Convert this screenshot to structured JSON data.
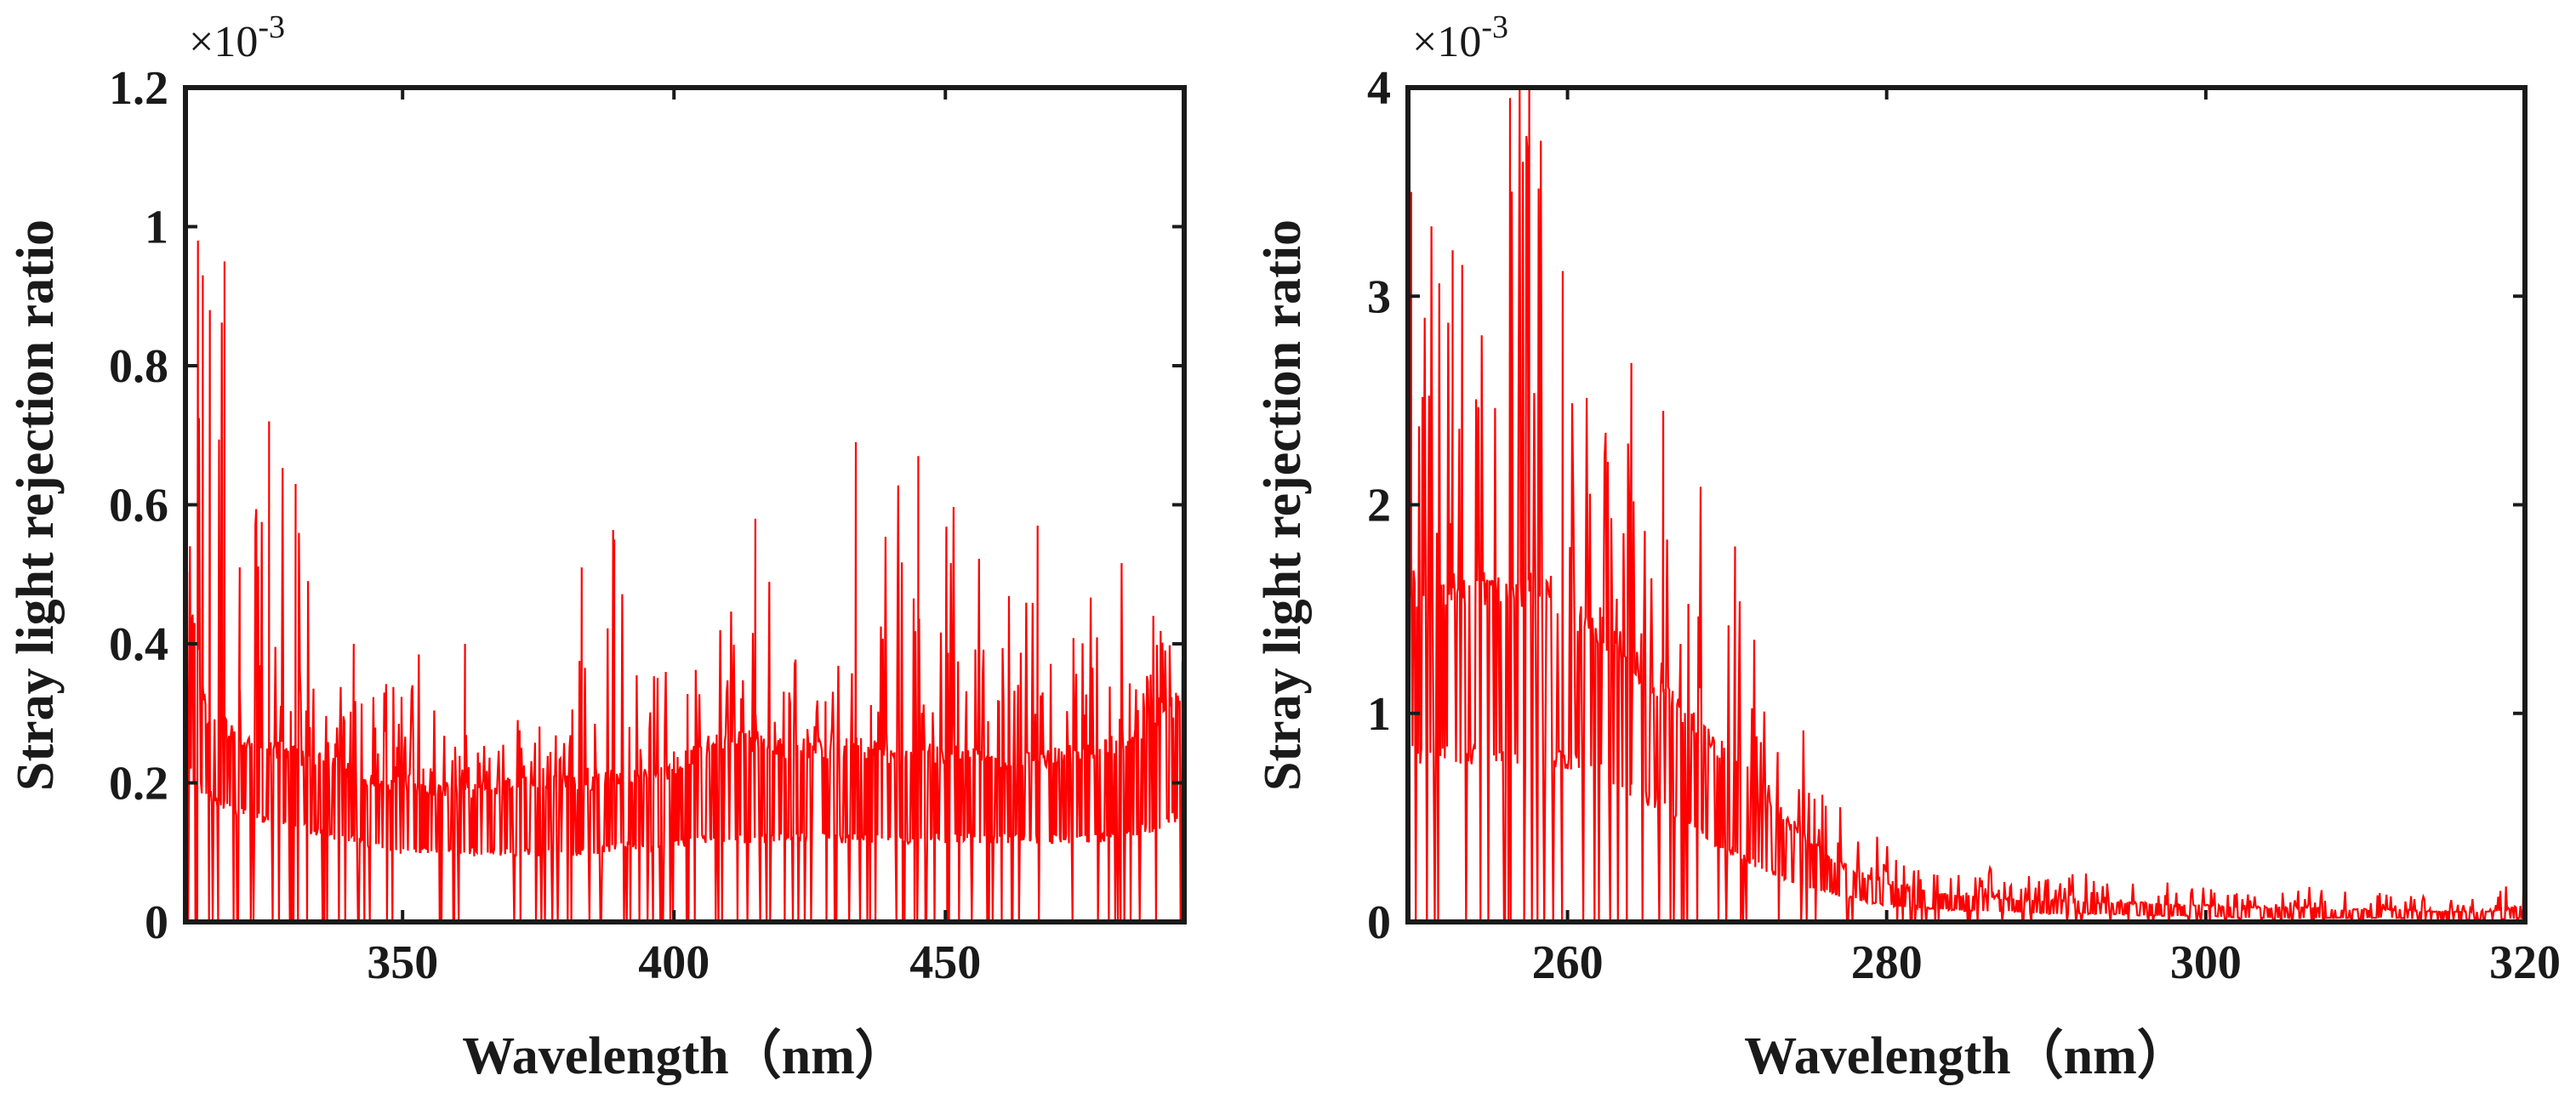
{
  "chart_data": [
    {
      "type": "line",
      "title": "",
      "xlabel": "Wavelength（nm）",
      "ylabel": "Stray light rejection ratio",
      "y_multiplier": "×10-3",
      "y_multiplier_base": "×10",
      "y_multiplier_exp": "-3",
      "xlim": [
        310,
        494
      ],
      "ylim": [
        0,
        1.2
      ],
      "xticks": [
        350,
        400,
        450
      ],
      "yticks": [
        0,
        0.2,
        0.4,
        0.6,
        0.8,
        1,
        1.2
      ],
      "xtick_labels": [
        "350",
        "400",
        "450"
      ],
      "ytick_labels": [
        "0",
        "0.2",
        "0.4",
        "0.6",
        "0.8",
        "1",
        "1.2"
      ],
      "grid": false,
      "series": [
        {
          "color": "#ff0000",
          "x": [
            310,
            312,
            314,
            317,
            320,
            325,
            330,
            335,
            340,
            345,
            350,
            355,
            360,
            365,
            370,
            375,
            380,
            385,
            390,
            395,
            400,
            405,
            410,
            415,
            420,
            425,
            430,
            435,
            440,
            445,
            450,
            455,
            460,
            465,
            470,
            475,
            480,
            485,
            490,
            494
          ],
          "baseline": [
            0.24,
            0.2,
            0.18,
            0.17,
            0.16,
            0.15,
            0.14,
            0.13,
            0.12,
            0.11,
            0.1,
            0.1,
            0.1,
            0.1,
            0.1,
            0.1,
            0.1,
            0.1,
            0.11,
            0.11,
            0.11,
            0.12,
            0.12,
            0.12,
            0.12,
            0.12,
            0.12,
            0.12,
            0.12,
            0.12,
            0.12,
            0.12,
            0.12,
            0.12,
            0.12,
            0.12,
            0.12,
            0.13,
            0.14,
            0.16
          ],
          "level": [
            0.5,
            0.4,
            0.3,
            0.28,
            0.26,
            0.25,
            0.24,
            0.23,
            0.22,
            0.2,
            0.19,
            0.19,
            0.19,
            0.19,
            0.2,
            0.2,
            0.2,
            0.2,
            0.21,
            0.21,
            0.22,
            0.25,
            0.26,
            0.26,
            0.25,
            0.25,
            0.25,
            0.25,
            0.24,
            0.24,
            0.24,
            0.24,
            0.23,
            0.23,
            0.24,
            0.24,
            0.25,
            0.27,
            0.3,
            0.32
          ],
          "envelope": [
            1.14,
            0.98,
            0.93,
            0.95,
            0.51,
            0.72,
            0.63,
            0.38,
            0.39,
            0.38,
            0.35,
            0.38,
            0.35,
            0.4,
            0.31,
            0.31,
            0.31,
            0.51,
            0.55,
            0.42,
            0.38,
            0.48,
            0.47,
            0.58,
            0.42,
            0.38,
            0.39,
            0.45,
            0.69,
            0.5,
            0.67,
            0.57,
            0.46,
            0.5,
            0.42,
            0.39,
            0.62,
            0.4,
            0.45,
            0.58
          ],
          "peaks": [
            [
              310.3,
              1.14
            ],
            [
              312.3,
              0.98
            ],
            [
              313.2,
              0.93
            ],
            [
              314.5,
              0.88
            ],
            [
              317.2,
              0.95
            ],
            [
              320.0,
              0.51
            ],
            [
              325.4,
              0.72
            ],
            [
              330.3,
              0.63
            ],
            [
              341.0,
              0.4
            ],
            [
              361.5,
              0.4
            ],
            [
              383.0,
              0.51
            ],
            [
              389.0,
              0.55
            ],
            [
              415.0,
              0.58
            ],
            [
              433.5,
              0.69
            ],
            [
              445.0,
              0.67
            ],
            [
              467.0,
              0.57
            ],
            [
              494.0,
              0.58
            ]
          ]
        }
      ]
    },
    {
      "type": "line",
      "title": "",
      "xlabel": "Wavelength（nm）",
      "ylabel": "Stray light rejection ratio",
      "y_multiplier": "×10-3",
      "y_multiplier_base": "×10",
      "y_multiplier_exp": "-3",
      "xlim": [
        250,
        320
      ],
      "ylim": [
        0,
        4
      ],
      "xticks": [
        260,
        280,
        300,
        320
      ],
      "yticks": [
        0,
        1,
        2,
        3,
        4
      ],
      "xtick_labels": [
        "260",
        "280",
        "300",
        "320"
      ],
      "ytick_labels": [
        "0",
        "1",
        "2",
        "3",
        "4"
      ],
      "grid": false,
      "series": [
        {
          "color": "#ff0000",
          "x": [
            250,
            252,
            254,
            256,
            258,
            260,
            262,
            264,
            266,
            268,
            270,
            272,
            274,
            276,
            278,
            280,
            282,
            284,
            286,
            288,
            290,
            292,
            294,
            296,
            298,
            300,
            302,
            304,
            306,
            308,
            310,
            312,
            314,
            316,
            318,
            320
          ],
          "baseline": [
            0.8,
            0.8,
            0.8,
            0.8,
            0.8,
            0.78,
            0.72,
            0.64,
            0.54,
            0.45,
            0.35,
            0.27,
            0.2,
            0.15,
            0.11,
            0.08,
            0.07,
            0.06,
            0.05,
            0.05,
            0.04,
            0.04,
            0.04,
            0.03,
            0.03,
            0.03,
            0.02,
            0.02,
            0.02,
            0.02,
            0.02,
            0.02,
            0.01,
            0.01,
            0.01,
            0.02
          ],
          "level": [
            1.6,
            1.6,
            1.6,
            1.6,
            1.58,
            1.5,
            1.4,
            1.25,
            1.1,
            0.95,
            0.8,
            0.62,
            0.47,
            0.33,
            0.24,
            0.18,
            0.15,
            0.13,
            0.12,
            0.11,
            0.1,
            0.1,
            0.09,
            0.09,
            0.08,
            0.08,
            0.07,
            0.07,
            0.07,
            0.06,
            0.06,
            0.06,
            0.05,
            0.05,
            0.05,
            0.08
          ],
          "envelope": [
            3.5,
            3.2,
            3.2,
            3.95,
            4.0,
            3.1,
            2.4,
            2.68,
            2.45,
            2.2,
            1.8,
            1.4,
            1.1,
            0.7,
            0.5,
            0.42,
            0.35,
            0.33,
            0.32,
            0.26,
            0.22,
            0.25,
            0.2,
            0.2,
            0.18,
            0.2,
            0.18,
            0.15,
            0.17,
            0.15,
            0.14,
            0.14,
            0.12,
            0.12,
            0.12,
            0.28
          ],
          "peaks": [
            [
              250.2,
              3.5
            ],
            [
              252.8,
              3.22
            ],
            [
              253.4,
              3.15
            ],
            [
              256.4,
              3.95
            ],
            [
              257.6,
              4.0
            ],
            [
              259.7,
              3.12
            ],
            [
              264.0,
              2.68
            ],
            [
              266.0,
              2.45
            ],
            [
              270.5,
              1.8
            ],
            [
              320.0,
              0.28
            ]
          ]
        }
      ]
    }
  ]
}
